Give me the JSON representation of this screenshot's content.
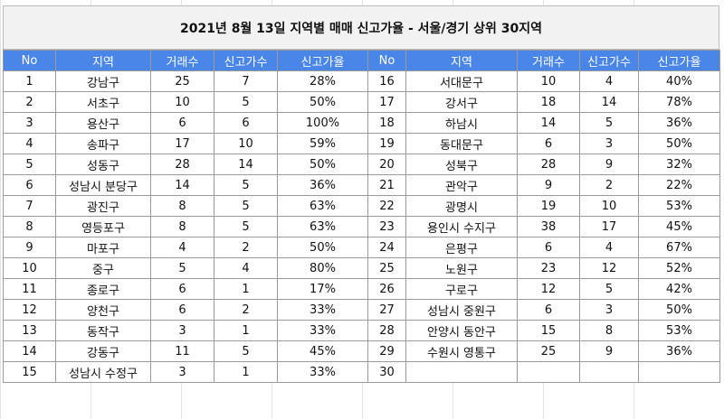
{
  "title": "2021년 8월 13일  지역별 매매 신고가율 - 서울/경기 상위 30지역",
  "colors": {
    "header_bg": "#4a86e8",
    "header_text": "#ffffff",
    "title_bg": "#f2f2f2"
  },
  "headers": [
    "No",
    "지역",
    "거래수",
    "신고가수",
    "신고가율",
    "No",
    "지역",
    "거래수",
    "신고가수",
    "신고가율"
  ],
  "rows": [
    [
      "1",
      "강남구",
      "25",
      "7",
      "28%",
      "16",
      "서대문구",
      "10",
      "4",
      "40%"
    ],
    [
      "2",
      "서초구",
      "10",
      "5",
      "50%",
      "17",
      "강서구",
      "18",
      "14",
      "78%"
    ],
    [
      "3",
      "용산구",
      "6",
      "6",
      "100%",
      "18",
      "하남시",
      "14",
      "5",
      "36%"
    ],
    [
      "4",
      "송파구",
      "17",
      "10",
      "59%",
      "19",
      "동대문구",
      "6",
      "3",
      "50%"
    ],
    [
      "5",
      "성동구",
      "28",
      "14",
      "50%",
      "20",
      "성북구",
      "28",
      "9",
      "32%"
    ],
    [
      "6",
      "성남시 분당구",
      "14",
      "5",
      "36%",
      "21",
      "관악구",
      "9",
      "2",
      "22%"
    ],
    [
      "7",
      "광진구",
      "8",
      "5",
      "63%",
      "22",
      "광명시",
      "19",
      "10",
      "53%"
    ],
    [
      "8",
      "영등포구",
      "8",
      "5",
      "63%",
      "23",
      "용인시 수지구",
      "38",
      "17",
      "45%"
    ],
    [
      "9",
      "마포구",
      "4",
      "2",
      "50%",
      "24",
      "은평구",
      "6",
      "4",
      "67%"
    ],
    [
      "10",
      "중구",
      "5",
      "4",
      "80%",
      "25",
      "노원구",
      "23",
      "12",
      "52%"
    ],
    [
      "11",
      "종로구",
      "6",
      "1",
      "17%",
      "26",
      "구로구",
      "12",
      "5",
      "42%"
    ],
    [
      "12",
      "양천구",
      "6",
      "2",
      "33%",
      "27",
      "성남시 중원구",
      "6",
      "3",
      "50%"
    ],
    [
      "13",
      "동작구",
      "3",
      "1",
      "33%",
      "28",
      "안양시 동안구",
      "15",
      "8",
      "53%"
    ],
    [
      "14",
      "강동구",
      "11",
      "5",
      "45%",
      "29",
      "수원시 영통구",
      "25",
      "9",
      "36%"
    ],
    [
      "15",
      "성남시 수정구",
      "3",
      "1",
      "33%",
      "30",
      "",
      "",
      "",
      ""
    ]
  ]
}
